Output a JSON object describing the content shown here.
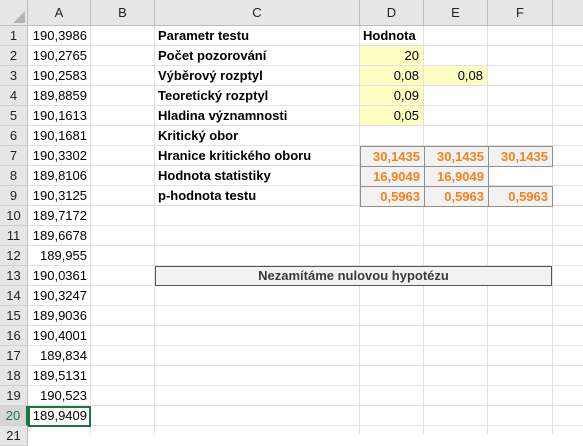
{
  "columns": [
    "A",
    "B",
    "C",
    "D",
    "E",
    "F"
  ],
  "rows": [
    "1",
    "2",
    "3",
    "4",
    "5",
    "6",
    "7",
    "8",
    "9",
    "10",
    "11",
    "12",
    "13",
    "14",
    "15",
    "16",
    "17",
    "18",
    "19",
    "20",
    "21"
  ],
  "data_column_a": [
    "190,3986",
    "190,2765",
    "190,2583",
    "189,8859",
    "190,1613",
    "190,1681",
    "190,3302",
    "189,8106",
    "190,3125",
    "189,7172",
    "189,6678",
    "189,955",
    "190,0361",
    "190,3247",
    "189,9036",
    "190,4001",
    "189,834",
    "189,5131",
    "190,523",
    "189,9409"
  ],
  "labels": {
    "param_header": "Parametr testu",
    "value_header": "Hodnota",
    "sample_count": "Počet pozorování",
    "sample_variance": "Výběrový rozptyl",
    "theoretical_variance": "Teoretický rozptyl",
    "significance_level": "Hladina významnosti",
    "critical_region": "Kritický obor",
    "critical_bounds": "Hranice kritického oboru",
    "statistic_value": "Hodnota statistiky",
    "p_value": "p-hodnota testu"
  },
  "values": {
    "sample_count": "20",
    "sample_variance_d": "0,08",
    "sample_variance_e": "0,08",
    "theoretical_variance": "0,09",
    "significance_level": "0,05",
    "critical_bound_d": "30,1435",
    "critical_bound_e": "30,1435",
    "critical_bound_f": "30,1435",
    "statistic_d": "16,9049",
    "statistic_e": "16,9049",
    "p_value_d": "0,5963",
    "p_value_e": "0,5963",
    "p_value_f": "0,5963"
  },
  "verdict": "Nezamítáme nulovou hypotézu",
  "colors": {
    "input_fill": "#ffffc4",
    "result_text": "#f58220",
    "selection": "#217346"
  }
}
